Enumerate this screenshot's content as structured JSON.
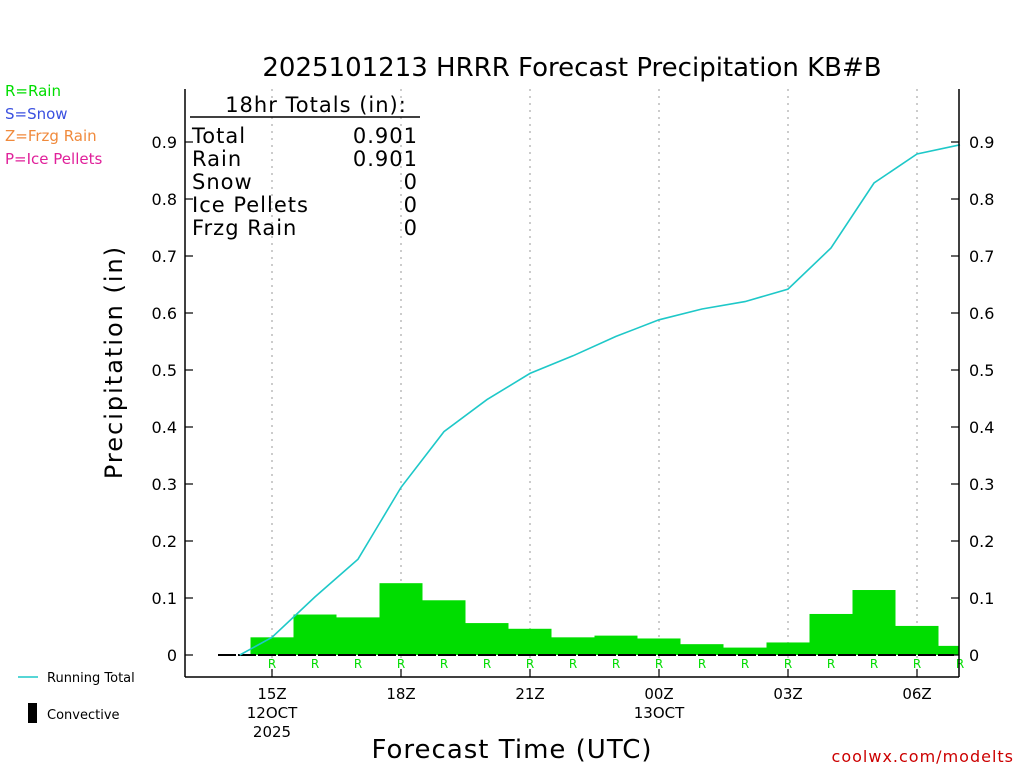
{
  "chart_data": {
    "type": "bar",
    "title": "2025101213 HRRR Forecast Precipitation KB#B",
    "xlabel": "Forecast Time (UTC)",
    "ylabel": "Precipitation (in)",
    "ylim": [
      0,
      1.0
    ],
    "yticks": [
      0,
      0.1,
      0.2,
      0.3,
      0.4,
      0.5,
      0.6,
      0.7,
      0.8,
      0.9
    ],
    "xticks": [
      {
        "hour": 1,
        "lines": [
          "15Z",
          "12OCT",
          "2025"
        ]
      },
      {
        "hour": 4,
        "lines": [
          "18Z"
        ]
      },
      {
        "hour": 7,
        "lines": [
          "21Z"
        ]
      },
      {
        "hour": 10,
        "lines": [
          "00Z",
          "13OCT"
        ]
      },
      {
        "hour": 13,
        "lines": [
          "03Z"
        ]
      },
      {
        "hour": 16,
        "lines": [
          "06Z"
        ]
      }
    ],
    "hours": [
      1,
      2,
      3,
      4,
      5,
      6,
      7,
      8,
      9,
      10,
      11,
      12,
      13,
      14,
      15,
      16,
      17
    ],
    "hourly_precip": [
      0.031,
      0.071,
      0.066,
      0.126,
      0.096,
      0.056,
      0.046,
      0.031,
      0.034,
      0.029,
      0.019,
      0.013,
      0.022,
      0.072,
      0.114,
      0.051,
      0.016
    ],
    "ptype": [
      "R",
      "R",
      "R",
      "R",
      "R",
      "R",
      "R",
      "R",
      "R",
      "R",
      "R",
      "R",
      "R",
      "R",
      "R",
      "R",
      "R"
    ],
    "running_total": {
      "hours": [
        0.25,
        1,
        2,
        3,
        4,
        5,
        6,
        7,
        8,
        9,
        10,
        11,
        12,
        13,
        14,
        15,
        16,
        17
      ],
      "values": [
        0,
        0.031,
        0.102,
        0.168,
        0.294,
        0.392,
        0.448,
        0.494,
        0.525,
        0.559,
        0.588,
        0.607,
        0.62,
        0.642,
        0.714,
        0.828,
        0.879,
        0.895
      ]
    },
    "grid": "vertical dotted at labeled hours",
    "colors": {
      "rain": "#00dd00",
      "snow": "#3a50e0",
      "frzg_rain": "#f08a3c",
      "ice_pellets": "#e0209a",
      "running_total": "#1ec8c8",
      "convective": "#000000",
      "credit": "#cc0000"
    }
  },
  "totals_box": {
    "header": "18hr Totals (in):",
    "rows": [
      {
        "label": "Total",
        "value": "0.901"
      },
      {
        "label": "Rain",
        "value": "0.901"
      },
      {
        "label": "Snow",
        "value": "0"
      },
      {
        "label": "Ice Pellets",
        "value": "0"
      },
      {
        "label": "Frzg Rain",
        "value": "0"
      }
    ]
  },
  "ptype_legend": [
    "R=Rain",
    "S=Snow",
    "Z=Frzg Rain",
    "P=Ice Pellets"
  ],
  "bottom_legend": {
    "running_total": "Running Total",
    "convective": "Convective"
  },
  "credit": "coolwx.com/modelts"
}
